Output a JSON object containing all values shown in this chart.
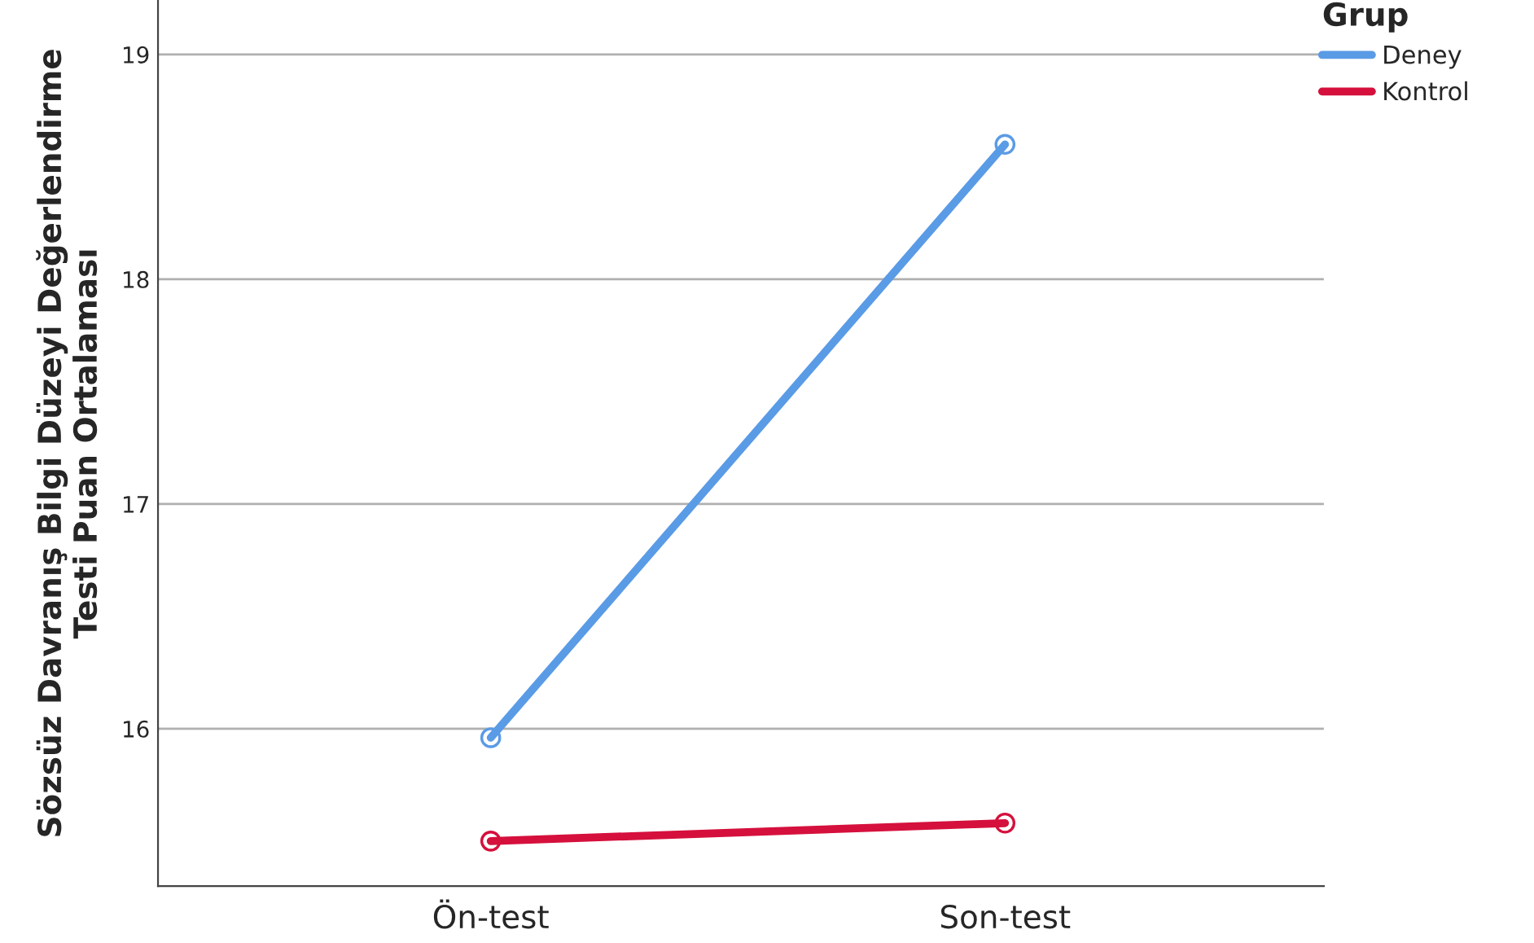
{
  "chart_data": {
    "type": "line",
    "ylabel": "Sözsüz Davranış Bilgi Düzeyi Değerlendirme\nTesti Puan Ortalaması",
    "legend_title": "Grup",
    "categories": [
      "Ön-test",
      "Son-test"
    ],
    "series": [
      {
        "name": "Deney",
        "color": "#5a9be6",
        "values": [
          15.96,
          18.6
        ]
      },
      {
        "name": "Kontrol",
        "color": "#d5103c",
        "values": [
          15.5,
          15.58
        ]
      }
    ],
    "ylim": [
      15.3,
      19.24
    ],
    "yticks": [
      16,
      17,
      18,
      19
    ],
    "grid": "y",
    "legend": "top right",
    "marker": "circle",
    "line_style": "solid"
  }
}
